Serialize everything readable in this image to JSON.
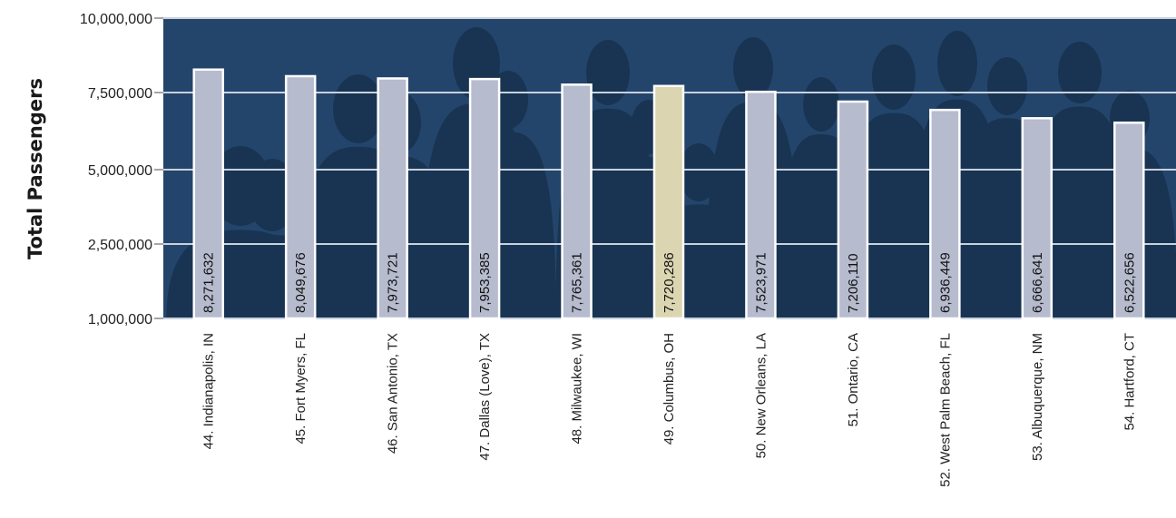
{
  "chart_data": {
    "type": "bar",
    "ylabel": "Total Passengers",
    "ylim": [
      1000000,
      10000000
    ],
    "yticks": [
      1000000,
      2500000,
      5000000,
      7500000,
      10000000
    ],
    "ytick_labels": [
      "1,000,000",
      "2,500,000",
      "5,000,000",
      "7,500,000",
      "10,000,000"
    ],
    "scale": "custom-piecewise",
    "grid": true,
    "categories": [
      "44. Indianapolis, IN",
      "45. Fort Myers, FL",
      "46. San Antonio, TX",
      "47. Dallas (Love), TX",
      "48. Milwaukee, WI",
      "49. Columbus, OH",
      "50. New Orleans, LA",
      "51. Ontario, CA",
      "52. West Palm Beach, FL",
      "53. Albuquerque, NM",
      "54. Hartford, CT"
    ],
    "values": [
      8271632,
      8049676,
      7973721,
      7953385,
      7765361,
      7720286,
      7523971,
      7206110,
      6936449,
      6666641,
      6522656
    ],
    "value_labels": [
      "8,271,632",
      "8,049,676",
      "7,973,721",
      "7,953,385",
      "7,765,361",
      "7,720,286",
      "7,523,971",
      "7,206,110",
      "6,936,449",
      "6,666,641",
      "6,522,656"
    ],
    "highlight": "49. Columbus, OH",
    "colors": {
      "background": "#24456b",
      "silhouette": "#183452",
      "bar": "#b6bbce",
      "bar_highlight": "#dcd5b1",
      "bar_stroke": "#ffffff",
      "grid": "#c9d1de"
    }
  }
}
